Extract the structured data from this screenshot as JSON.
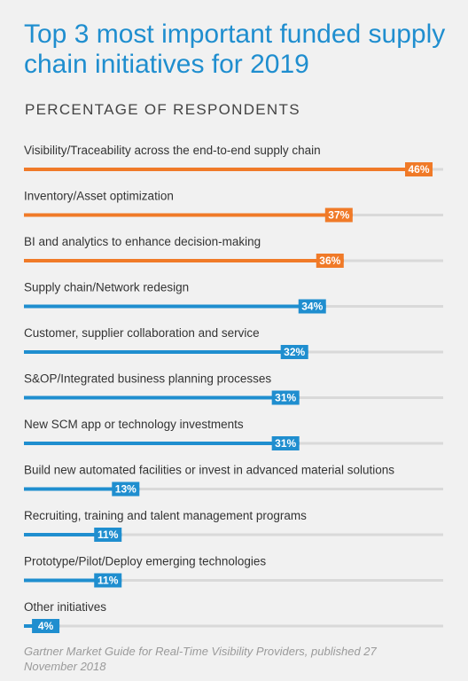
{
  "title": "Top 3 most important funded supply chain initiatives for 2019",
  "subtitle": "PERCENTAGE OF RESPONDENTS",
  "source": "Gartner Market Guide for Real-Time Visibility Providers, published 27 November 2018",
  "colors": {
    "top3": "#f07a28",
    "other": "#1f8ecf",
    "track": "#d9d9d9",
    "title": "#1f8ecf"
  },
  "chart_data": {
    "type": "bar",
    "orientation": "horizontal",
    "title": "Top 3 most important funded supply chain initiatives for 2019",
    "subtitle": "PERCENTAGE OF RESPONDENTS",
    "unit": "%",
    "xlim": [
      0,
      50
    ],
    "grid": false,
    "highlighted_top": 3,
    "categories": [
      "Visibility/Traceability across the end-to-end supply chain",
      "Inventory/Asset optimization",
      "BI and analytics to enhance decision-making",
      "Supply chain/Network redesign",
      "Customer, supplier collaboration and service",
      "S&OP/Integrated business planning processes",
      "New SCM app or technology investments",
      "Build new automated facilities or invest in advanced material solutions",
      "Recruiting, training and talent management programs",
      "Prototype/Pilot/Deploy emerging technologies",
      "Other initiatives"
    ],
    "values": [
      46,
      37,
      36,
      34,
      32,
      31,
      31,
      13,
      11,
      11,
      4
    ],
    "value_labels": [
      "46%",
      "37%",
      "36%",
      "34%",
      "32%",
      "31%",
      "31%",
      "13%",
      "11%",
      "11%",
      "4%"
    ]
  }
}
